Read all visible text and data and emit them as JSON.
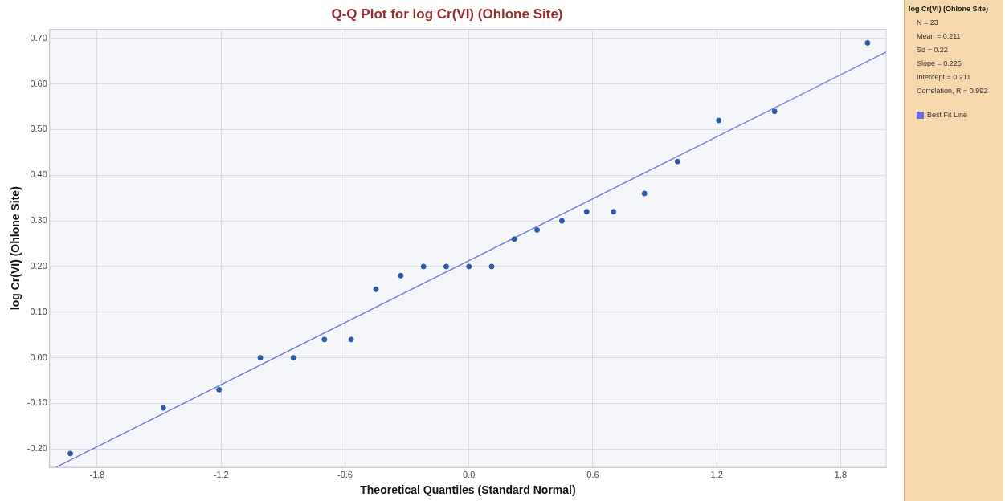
{
  "chart_data": {
    "type": "scatter",
    "title": "Q-Q Plot for log Cr(VI) (Ohlone Site)",
    "xlabel": "Theoretical Quantiles (Standard Normal)",
    "ylabel": "log Cr(VI) (Ohlone Site)",
    "legend_title": "log Cr(VI) (Ohlone Site)",
    "annotations": [
      "N = 23",
      "Mean = 0.211",
      "Sd = 0.22",
      "Slope = 0.225",
      "Intercept = 0.211",
      "Correlation, R = 0.992"
    ],
    "series": [
      {
        "color": "#2b5ca8",
        "x": [
          -1.93,
          -1.48,
          -1.21,
          -1.01,
          -0.85,
          -0.7,
          -0.57,
          -0.45,
          -0.33,
          -0.22,
          -0.11,
          0,
          0.11,
          0.22,
          0.33,
          0.45,
          0.57,
          0.7,
          0.85,
          1.01,
          1.21,
          1.48,
          1.93
        ],
        "values": [
          -0.21,
          -0.11,
          -0.07,
          0.0,
          0.0,
          0.04,
          0.04,
          0.15,
          0.18,
          0.2,
          0.2,
          0.2,
          0.2,
          0.26,
          0.28,
          0.3,
          0.32,
          0.32,
          0.36,
          0.43,
          0.52,
          0.54,
          0.69
        ]
      },
      {
        "type": "line",
        "marker": "none",
        "name": "Best Fit Line",
        "color": "#6b6be0",
        "x": [
          -2.0,
          2.02
        ],
        "values": [
          -0.24,
          0.67
        ]
      }
    ],
    "xlim": [
      -2.03,
      2.02
    ],
    "xticks": [
      -1.8,
      -1.2,
      -0.6,
      {
        "value": 0,
        "label": "0.0"
      },
      0.6,
      1.2,
      1.8
    ],
    "ylim": [
      -0.24,
      0.72
    ],
    "yticks": [
      {
        "value": -0.2,
        "label": "-0.20"
      },
      {
        "value": -0.1,
        "label": "-0.10"
      },
      {
        "value": 0,
        "label": "0.00"
      },
      {
        "value": 0.1,
        "label": "0.10"
      },
      {
        "value": 0.2,
        "label": "0.20"
      },
      {
        "value": 0.3,
        "label": "0.30"
      },
      {
        "value": 0.4,
        "label": "0.40"
      },
      {
        "value": 0.5,
        "label": "0.50"
      },
      {
        "value": 0.6,
        "label": "0.60"
      },
      {
        "value": 0.7,
        "label": "0.70"
      }
    ],
    "grid": true,
    "legend": "right",
    "marker": "circle"
  }
}
